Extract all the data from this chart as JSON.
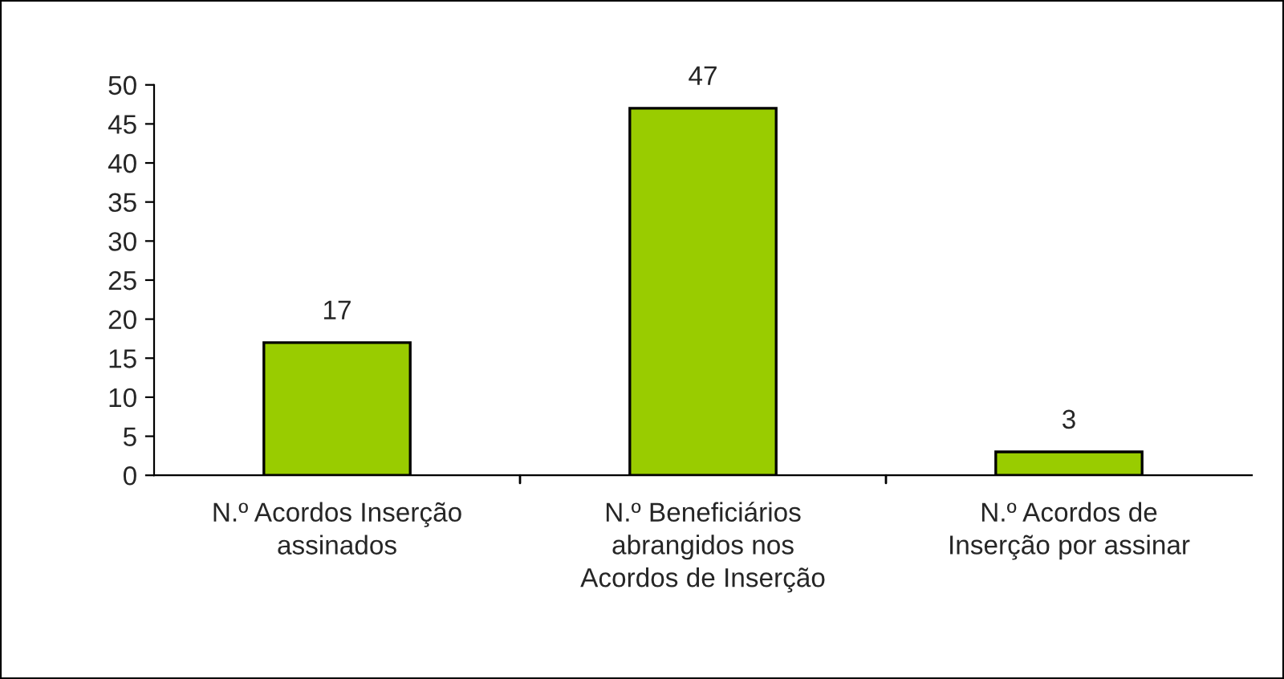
{
  "chart_data": {
    "type": "bar",
    "categories": [
      "N.º Acordos Inserção\nassinados",
      "N.º Beneficiários\nabrangidos nos\nAcordos de Inserção",
      "N.º Acordos de\nInserção por assinar"
    ],
    "values": [
      17,
      47,
      3
    ],
    "color": "#99cc00",
    "ylim": [
      0,
      50
    ],
    "yticks": [
      0,
      5,
      10,
      15,
      20,
      25,
      30,
      35,
      40,
      45,
      50
    ],
    "data_labels": true,
    "grid": false,
    "legend": false
  }
}
